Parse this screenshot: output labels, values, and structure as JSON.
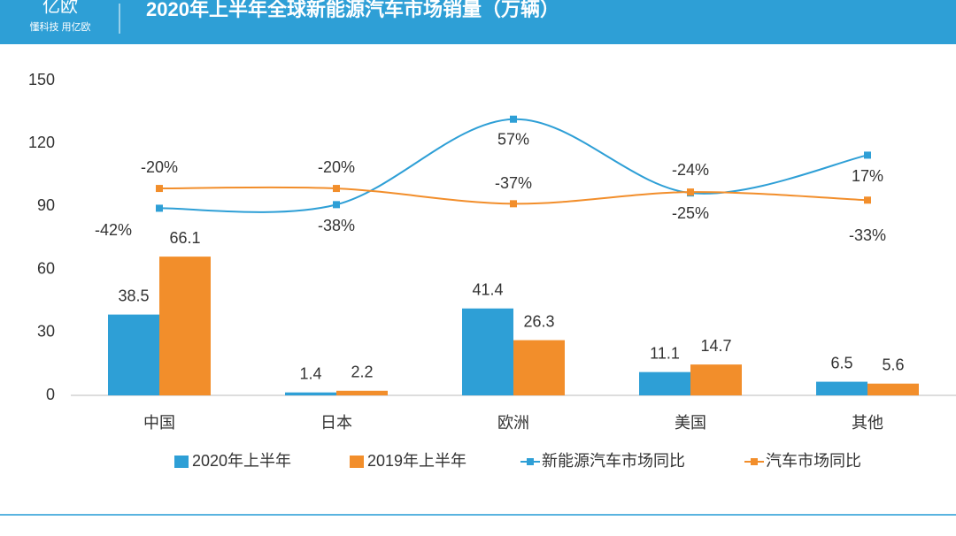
{
  "header": {
    "logo": "亿欧",
    "slogan": "懂科技 用亿欧"
  },
  "chart_data": {
    "type": "bar",
    "title": "2020年上半年全球新能源汽车市场销量（万辆）",
    "categories": [
      "中国",
      "日本",
      "欧洲",
      "美国",
      "其他"
    ],
    "series": [
      {
        "name": "2020年上半年",
        "type": "bar",
        "color": "#2e9fd6",
        "values": [
          38.5,
          1.4,
          41.4,
          11.1,
          6.5
        ]
      },
      {
        "name": "2019年上半年",
        "type": "bar",
        "color": "#f28e2b",
        "values": [
          66.1,
          2.2,
          26.3,
          14.7,
          5.6
        ]
      },
      {
        "name": "新能源汽车市场同比",
        "type": "line",
        "axis": "y2",
        "color": "#2e9fd6",
        "values": [
          -42,
          -38,
          57,
          -25,
          17
        ],
        "value_labels": [
          "-42%",
          "-38%",
          "57%",
          "-25%",
          "17%"
        ]
      },
      {
        "name": "汽车市场同比",
        "type": "line",
        "axis": "y2",
        "color": "#f28e2b",
        "values": [
          -20,
          -20,
          -37,
          -24,
          -33
        ],
        "value_labels": [
          "-20%",
          "-20%",
          "-37%",
          "-24%",
          "-33%"
        ]
      }
    ],
    "ylim": [
      0,
      150
    ],
    "yticks": [
      0,
      30,
      60,
      90,
      120,
      150
    ],
    "y2lim": [
      -250,
      100
    ]
  }
}
